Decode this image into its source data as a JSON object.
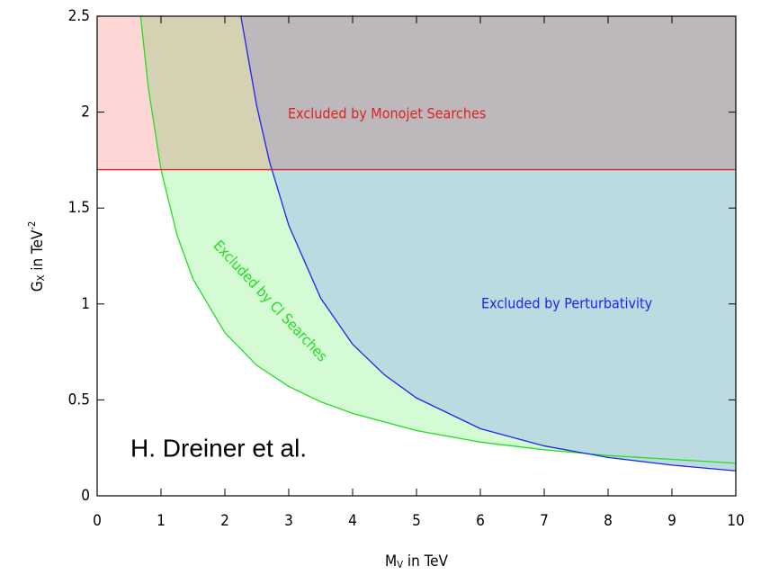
{
  "chart_data": {
    "type": "line",
    "xlabel": {
      "main": "M",
      "sub": "V",
      "rest": " in TeV"
    },
    "ylabel": {
      "main": "G",
      "sub": "X",
      "rest": " in TeV",
      "sup": "-2"
    },
    "annotation": "H. Dreiner et al.",
    "xlim": [
      0,
      10
    ],
    "xticks": [
      0,
      1,
      2,
      3,
      4,
      5,
      6,
      7,
      8,
      9,
      10
    ],
    "ylim": [
      0,
      2.5
    ],
    "yticks": [
      0,
      0.5,
      1,
      1.5,
      2,
      2.5
    ],
    "series": [
      {
        "name": "Excluded by CI Searches",
        "color": "#22dd22",
        "fill": "#d4fbd4",
        "x": [
          0.68,
          0.8,
          1,
          1.25,
          1.5,
          2,
          2.5,
          3,
          3.5,
          4,
          5,
          6,
          7,
          8,
          9,
          10
        ],
        "values": [
          2.5,
          2.13,
          1.7,
          1.36,
          1.13,
          0.85,
          0.68,
          0.57,
          0.49,
          0.43,
          0.34,
          0.28,
          0.24,
          0.21,
          0.19,
          0.17
        ]
      },
      {
        "name": "Excluded by Perturbativity",
        "color": "#2222ee",
        "fill": "#bcdbe0",
        "x": [
          2.25,
          2.5,
          2.7,
          3,
          3.5,
          4,
          4.5,
          5,
          6,
          7,
          8,
          9,
          10
        ],
        "values": [
          2.5,
          2.03,
          1.74,
          1.41,
          1.03,
          0.79,
          0.63,
          0.51,
          0.35,
          0.26,
          0.2,
          0.16,
          0.13
        ]
      },
      {
        "name": "Excluded by Monojet Searches",
        "color": "#dd2222",
        "fill": "#ffd6d6",
        "x": [
          0,
          10
        ],
        "values": [
          1.7,
          1.7
        ]
      }
    ]
  }
}
